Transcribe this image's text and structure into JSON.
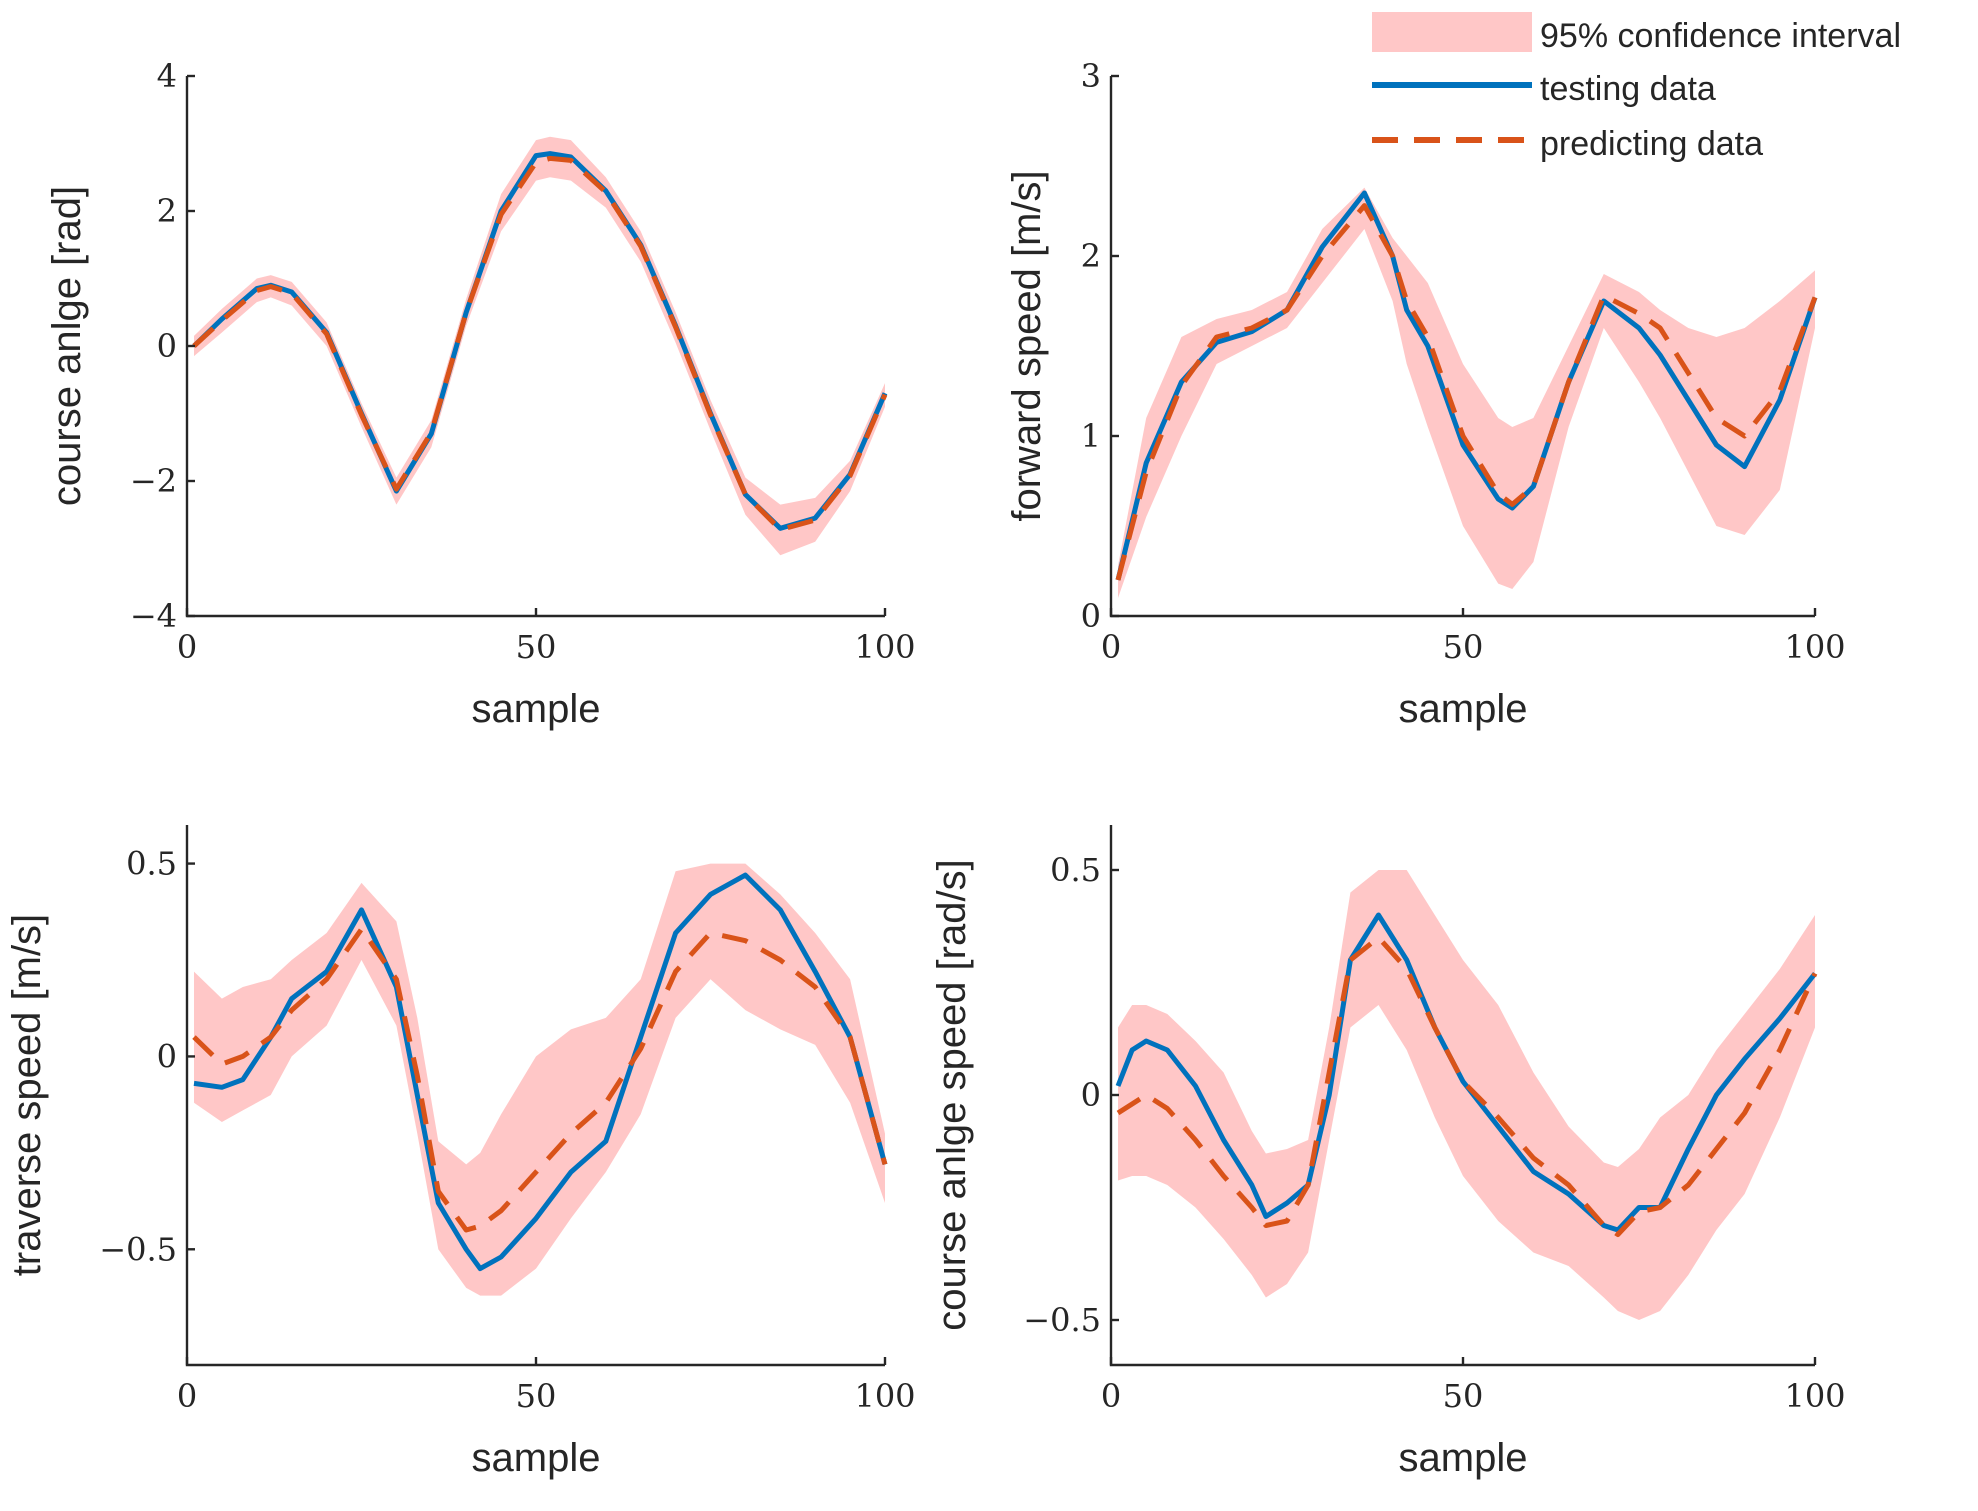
{
  "colors": {
    "testing": "#0072BD",
    "predicting": "#D95319",
    "confidence": "#FFC7C7",
    "axis": "#262626"
  },
  "legend": {
    "confidence_label": "95% confidence interval",
    "testing_label": "testing data",
    "predicting_label": "predicting data"
  },
  "chart_data": [
    {
      "id": "course-angle",
      "type": "line",
      "xlabel": "sample",
      "ylabel": "course anlge [rad]",
      "xlim": [
        0,
        100
      ],
      "ylim": [
        -4,
        4
      ],
      "xticks": [
        0,
        50,
        100
      ],
      "yticks": [
        -4,
        -2,
        0,
        2,
        4
      ],
      "ytick_labels": [
        "−4",
        "−2",
        "0",
        "2",
        "4"
      ],
      "x": [
        1,
        5,
        10,
        12,
        15,
        20,
        25,
        30,
        35,
        40,
        45,
        50,
        52,
        55,
        60,
        65,
        70,
        75,
        80,
        85,
        90,
        95,
        100
      ],
      "series": [
        {
          "name": "testing data",
          "values": [
            0.0,
            0.4,
            0.85,
            0.9,
            0.8,
            0.2,
            -1.0,
            -2.15,
            -1.3,
            0.5,
            2.0,
            2.82,
            2.85,
            2.8,
            2.3,
            1.5,
            0.3,
            -1.0,
            -2.2,
            -2.7,
            -2.55,
            -1.9,
            -0.7
          ]
        },
        {
          "name": "predicting data",
          "values": [
            0.0,
            0.38,
            0.82,
            0.88,
            0.78,
            0.18,
            -1.02,
            -2.12,
            -1.28,
            0.5,
            1.95,
            2.72,
            2.78,
            2.75,
            2.28,
            1.48,
            0.28,
            -1.02,
            -2.2,
            -2.72,
            -2.58,
            -1.92,
            -0.72
          ]
        }
      ],
      "confidence_upper": [
        0.15,
        0.55,
        1.0,
        1.05,
        0.95,
        0.35,
        -0.85,
        -1.95,
        -1.1,
        0.7,
        2.25,
        3.05,
        3.1,
        3.05,
        2.5,
        1.7,
        0.5,
        -0.8,
        -1.95,
        -2.35,
        -2.25,
        -1.7,
        -0.55
      ],
      "confidence_lower": [
        -0.15,
        0.2,
        0.65,
        0.72,
        0.6,
        0.0,
        -1.2,
        -2.35,
        -1.5,
        0.3,
        1.7,
        2.45,
        2.5,
        2.45,
        2.05,
        1.25,
        0.05,
        -1.25,
        -2.5,
        -3.1,
        -2.9,
        -2.15,
        -0.9
      ]
    },
    {
      "id": "forward-speed",
      "type": "line",
      "xlabel": "sample",
      "ylabel": "forward speed [m/s]",
      "xlim": [
        0,
        100
      ],
      "ylim": [
        0,
        3
      ],
      "xticks": [
        0,
        50,
        100
      ],
      "yticks": [
        0,
        1,
        2,
        3
      ],
      "ytick_labels": [
        "0",
        "1",
        "2",
        "3"
      ],
      "x": [
        1,
        5,
        10,
        15,
        20,
        25,
        30,
        36,
        40,
        42,
        45,
        50,
        55,
        57,
        60,
        65,
        70,
        75,
        78,
        82,
        86,
        90,
        95,
        100
      ],
      "series": [
        {
          "name": "testing data",
          "values": [
            0.2,
            0.85,
            1.3,
            1.52,
            1.58,
            1.7,
            2.05,
            2.35,
            2.0,
            1.7,
            1.5,
            0.95,
            0.65,
            0.6,
            0.72,
            1.3,
            1.75,
            1.6,
            1.45,
            1.2,
            0.95,
            0.83,
            1.2,
            1.77
          ]
        },
        {
          "name": "predicting data",
          "values": [
            0.2,
            0.8,
            1.28,
            1.55,
            1.6,
            1.7,
            2.0,
            2.28,
            2.0,
            1.75,
            1.55,
            1.0,
            0.68,
            0.62,
            0.72,
            1.3,
            1.78,
            1.68,
            1.6,
            1.35,
            1.1,
            1.0,
            1.25,
            1.77
          ]
        }
      ],
      "confidence_upper": [
        0.28,
        1.1,
        1.55,
        1.65,
        1.7,
        1.8,
        2.15,
        2.38,
        2.1,
        2.0,
        1.85,
        1.4,
        1.1,
        1.05,
        1.1,
        1.5,
        1.9,
        1.8,
        1.7,
        1.6,
        1.55,
        1.6,
        1.75,
        1.92
      ],
      "confidence_lower": [
        0.1,
        0.55,
        1.0,
        1.4,
        1.5,
        1.6,
        1.85,
        2.15,
        1.75,
        1.4,
        1.05,
        0.5,
        0.18,
        0.15,
        0.3,
        1.05,
        1.6,
        1.3,
        1.1,
        0.8,
        0.5,
        0.45,
        0.7,
        1.6
      ]
    },
    {
      "id": "traverse-speed",
      "type": "line",
      "xlabel": "sample",
      "ylabel": "traverse speed [m/s]",
      "xlim": [
        0,
        100
      ],
      "ylim": [
        -0.8,
        0.6
      ],
      "xticks": [
        0,
        50,
        100
      ],
      "yticks": [
        -0.5,
        0,
        0.5
      ],
      "ytick_labels": [
        "−0.5",
        "0",
        "0.5"
      ],
      "x": [
        1,
        5,
        8,
        12,
        15,
        20,
        25,
        30,
        33,
        36,
        40,
        42,
        45,
        50,
        55,
        60,
        65,
        70,
        75,
        80,
        85,
        90,
        95,
        100
      ],
      "series": [
        {
          "name": "testing data",
          "values": [
            -0.07,
            -0.08,
            -0.06,
            0.05,
            0.15,
            0.22,
            0.38,
            0.18,
            -0.1,
            -0.38,
            -0.5,
            -0.55,
            -0.52,
            -0.42,
            -0.3,
            -0.22,
            0.05,
            0.32,
            0.42,
            0.47,
            0.38,
            0.22,
            0.05,
            -0.28
          ]
        },
        {
          "name": "predicting data",
          "values": [
            0.05,
            -0.02,
            0.0,
            0.05,
            0.12,
            0.2,
            0.33,
            0.2,
            -0.05,
            -0.35,
            -0.45,
            -0.44,
            -0.4,
            -0.3,
            -0.2,
            -0.12,
            0.02,
            0.22,
            0.32,
            0.3,
            0.25,
            0.18,
            0.05,
            -0.28
          ]
        }
      ],
      "confidence_upper": [
        0.22,
        0.15,
        0.18,
        0.2,
        0.25,
        0.32,
        0.45,
        0.35,
        0.1,
        -0.22,
        -0.28,
        -0.25,
        -0.15,
        0.0,
        0.07,
        0.1,
        0.2,
        0.48,
        0.5,
        0.5,
        0.42,
        0.32,
        0.2,
        -0.2
      ],
      "confidence_lower": [
        -0.12,
        -0.17,
        -0.14,
        -0.1,
        0.0,
        0.08,
        0.25,
        0.08,
        -0.2,
        -0.5,
        -0.6,
        -0.62,
        -0.62,
        -0.55,
        -0.42,
        -0.3,
        -0.15,
        0.1,
        0.2,
        0.12,
        0.07,
        0.03,
        -0.12,
        -0.38
      ]
    },
    {
      "id": "course-angle-speed",
      "type": "line",
      "xlabel": "sample",
      "ylabel": "course anlge speed [rad/s]",
      "xlim": [
        0,
        100
      ],
      "ylim": [
        -0.6,
        0.6
      ],
      "xticks": [
        0,
        50,
        100
      ],
      "yticks": [
        -0.5,
        0,
        0.5
      ],
      "ytick_labels": [
        "−0.5",
        "0",
        "0.5"
      ],
      "x": [
        1,
        3,
        5,
        8,
        12,
        16,
        20,
        22,
        25,
        28,
        31,
        34,
        38,
        42,
        46,
        50,
        55,
        60,
        65,
        70,
        72,
        75,
        78,
        82,
        86,
        90,
        95,
        100
      ],
      "series": [
        {
          "name": "testing data",
          "values": [
            0.02,
            0.1,
            0.12,
            0.1,
            0.02,
            -0.1,
            -0.2,
            -0.27,
            -0.24,
            -0.2,
            0.0,
            0.3,
            0.4,
            0.3,
            0.15,
            0.03,
            -0.07,
            -0.17,
            -0.22,
            -0.29,
            -0.3,
            -0.25,
            -0.25,
            -0.12,
            0.0,
            0.08,
            0.17,
            0.27
          ]
        },
        {
          "name": "predicting data",
          "values": [
            -0.04,
            -0.02,
            0.0,
            -0.03,
            -0.1,
            -0.18,
            -0.25,
            -0.29,
            -0.28,
            -0.2,
            0.05,
            0.3,
            0.35,
            0.28,
            0.15,
            0.03,
            -0.05,
            -0.14,
            -0.2,
            -0.29,
            -0.31,
            -0.26,
            -0.25,
            -0.2,
            -0.12,
            -0.04,
            0.1,
            0.27
          ]
        }
      ],
      "confidence_upper": [
        0.15,
        0.2,
        0.2,
        0.18,
        0.12,
        0.05,
        -0.08,
        -0.13,
        -0.12,
        -0.1,
        0.15,
        0.45,
        0.5,
        0.5,
        0.4,
        0.3,
        0.2,
        0.05,
        -0.07,
        -0.15,
        -0.16,
        -0.12,
        -0.05,
        0.0,
        0.1,
        0.18,
        0.28,
        0.4
      ],
      "confidence_lower": [
        -0.19,
        -0.18,
        -0.18,
        -0.2,
        -0.25,
        -0.32,
        -0.4,
        -0.45,
        -0.42,
        -0.35,
        -0.1,
        0.15,
        0.2,
        0.1,
        -0.05,
        -0.18,
        -0.28,
        -0.35,
        -0.38,
        -0.45,
        -0.48,
        -0.5,
        -0.48,
        -0.4,
        -0.3,
        -0.22,
        -0.05,
        0.15
      ]
    }
  ]
}
